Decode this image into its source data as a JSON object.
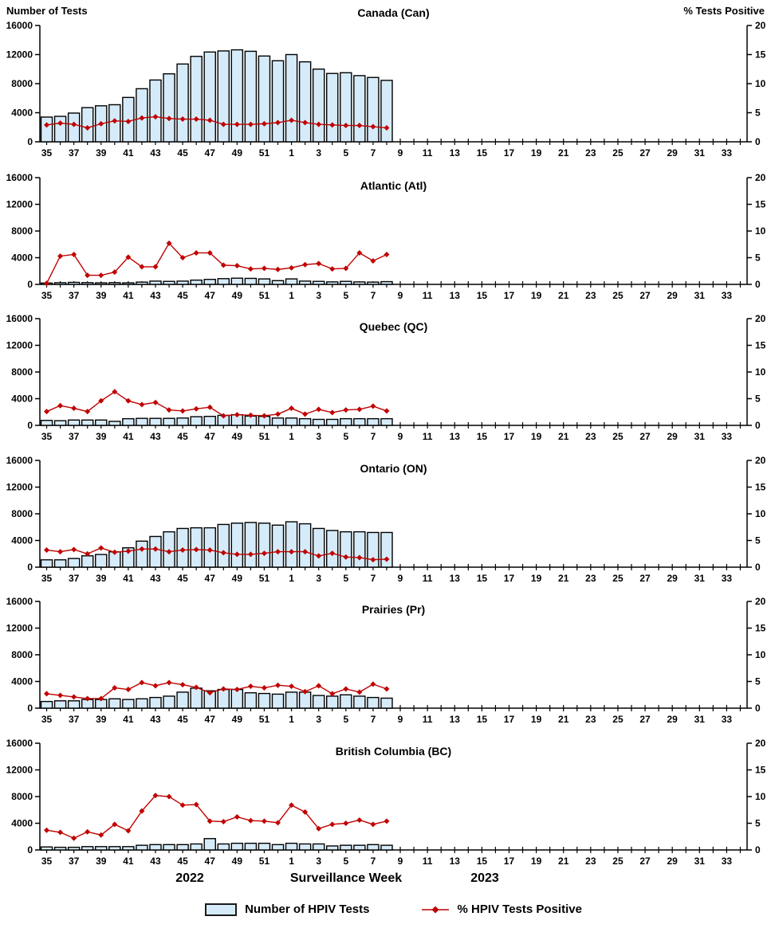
{
  "header": {
    "left_axis_title": "Number of Tests",
    "right_axis_title": "% Tests Positive"
  },
  "footer": {
    "year_left": "2022",
    "axis_title": "Surveillance Week",
    "year_right": "2023"
  },
  "legend": {
    "tests_label": "Number of HPIV Tests",
    "pct_label": "% HPIV Tests Positive"
  },
  "colors": {
    "bar_fill": "#D6EBFA",
    "bar_stroke": "#000000",
    "line": "#C00000",
    "axis": "#000000"
  },
  "chart_data": {
    "type": "bar",
    "subtype": "multi-panel bar + line (dual axis)",
    "x": {
      "axis_title": "Surveillance Week",
      "year_left": "2022",
      "year_right": "2023",
      "weeks_full": [
        35,
        36,
        37,
        38,
        39,
        40,
        41,
        42,
        43,
        44,
        45,
        46,
        47,
        48,
        49,
        50,
        51,
        52,
        1,
        2,
        3,
        4,
        5,
        6,
        7,
        8,
        9,
        10,
        11,
        12,
        13,
        14,
        15,
        16,
        17,
        18,
        19,
        20,
        21,
        22,
        23,
        24,
        25,
        26,
        27,
        28,
        29,
        30,
        31,
        32,
        33,
        34
      ],
      "data_weeks": [
        35,
        36,
        37,
        38,
        39,
        40,
        41,
        42,
        43,
        44,
        45,
        46,
        47,
        48,
        49,
        50,
        51,
        52,
        1,
        2,
        3,
        4,
        5,
        6,
        7,
        8
      ],
      "tick_labels_shown": [
        35,
        37,
        39,
        41,
        43,
        45,
        47,
        49,
        51,
        1,
        3,
        5,
        7,
        9,
        11,
        13,
        15,
        17,
        19,
        21,
        23,
        25,
        27,
        29,
        31,
        33
      ]
    },
    "left_axis": {
      "label": "Number of Tests",
      "range": [
        0,
        16000
      ],
      "ticks": [
        0,
        4000,
        8000,
        12000,
        16000
      ]
    },
    "right_axis": {
      "label": "% Tests Positive",
      "range": [
        0,
        20
      ],
      "ticks": [
        0,
        5,
        10,
        15,
        20
      ]
    },
    "grid": false,
    "legend_position": "bottom-center",
    "panels": [
      {
        "title": "Canada (Can)",
        "tests": [
          3400,
          3500,
          3950,
          4700,
          4950,
          5100,
          6100,
          7300,
          8500,
          9350,
          10700,
          11750,
          12350,
          12500,
          12650,
          12450,
          11800,
          11150,
          12000,
          11000,
          10000,
          9400,
          9500,
          9100,
          8850,
          8450
        ],
        "pct_positive": [
          2.9,
          3.2,
          3.0,
          2.4,
          3.1,
          3.6,
          3.5,
          4.1,
          4.3,
          4.0,
          3.9,
          3.9,
          3.7,
          3.0,
          3.0,
          3.0,
          3.1,
          3.3,
          3.7,
          3.3,
          3.0,
          2.9,
          2.8,
          2.8,
          2.6,
          2.4
        ]
      },
      {
        "title": "Atlantic (Atl)",
        "tests": [
          200,
          250,
          300,
          260,
          230,
          260,
          230,
          340,
          490,
          450,
          490,
          640,
          750,
          860,
          930,
          900,
          820,
          560,
          820,
          490,
          450,
          370,
          450,
          370,
          340,
          410
        ],
        "pct_positive": [
          0.2,
          5.3,
          5.6,
          1.7,
          1.7,
          2.3,
          5.1,
          3.3,
          3.3,
          7.7,
          5.0,
          5.9,
          5.9,
          3.6,
          3.5,
          2.9,
          3.0,
          2.8,
          3.1,
          3.7,
          3.9,
          2.9,
          3.0,
          5.9,
          4.4,
          5.6
        ]
      },
      {
        "title": "Quebec (QC)",
        "tests": [
          750,
          700,
          800,
          800,
          800,
          600,
          1000,
          1050,
          1050,
          1050,
          1100,
          1300,
          1350,
          1500,
          1600,
          1400,
          1350,
          1100,
          1100,
          1000,
          900,
          900,
          1000,
          1000,
          1000,
          1000
        ],
        "pct_positive": [
          2.6,
          3.7,
          3.2,
          2.6,
          4.6,
          6.3,
          4.6,
          3.9,
          4.3,
          2.9,
          2.7,
          3.1,
          3.4,
          1.8,
          2.0,
          1.9,
          1.8,
          2.1,
          3.2,
          2.1,
          3.0,
          2.4,
          2.9,
          3.0,
          3.6,
          2.7
        ]
      },
      {
        "title": "Ontario (ON)",
        "tests": [
          1100,
          1100,
          1300,
          1700,
          1900,
          2300,
          2900,
          3900,
          4600,
          5300,
          5800,
          5900,
          5900,
          6400,
          6600,
          6700,
          6600,
          6300,
          6800,
          6500,
          5800,
          5500,
          5300,
          5300,
          5200,
          5200
        ],
        "pct_positive": [
          3.2,
          2.9,
          3.3,
          2.5,
          3.6,
          2.8,
          3.0,
          3.4,
          3.4,
          2.9,
          3.2,
          3.3,
          3.2,
          2.7,
          2.4,
          2.4,
          2.6,
          2.9,
          2.9,
          2.9,
          2.1,
          2.6,
          1.9,
          1.8,
          1.4,
          1.5
        ]
      },
      {
        "title": "Prairies (Pr)",
        "tests": [
          1000,
          1100,
          1100,
          1300,
          1300,
          1400,
          1300,
          1400,
          1600,
          1800,
          2400,
          3000,
          2600,
          2800,
          2800,
          2300,
          2200,
          2100,
          2400,
          2400,
          1900,
          1800,
          2000,
          1800,
          1600,
          1500
        ],
        "pct_positive": [
          2.7,
          2.4,
          2.1,
          1.8,
          1.8,
          3.8,
          3.5,
          4.8,
          4.2,
          4.8,
          4.4,
          3.9,
          2.9,
          3.6,
          3.5,
          4.1,
          3.8,
          4.3,
          4.1,
          3.1,
          4.2,
          2.7,
          3.6,
          3.0,
          4.5,
          3.6
        ]
      },
      {
        "title": "British Columbia (BC)",
        "tests": [
          450,
          400,
          400,
          500,
          500,
          500,
          500,
          700,
          800,
          800,
          800,
          900,
          1700,
          900,
          1000,
          1000,
          1000,
          800,
          1000,
          900,
          900,
          600,
          700,
          700,
          800,
          700
        ],
        "pct_positive": [
          3.7,
          3.3,
          2.2,
          3.4,
          2.8,
          4.8,
          3.6,
          7.3,
          10.2,
          10.0,
          8.4,
          8.5,
          5.4,
          5.3,
          6.2,
          5.5,
          5.4,
          5.1,
          8.4,
          7.1,
          4.0,
          4.8,
          5.0,
          5.6,
          4.8,
          5.4
        ]
      }
    ]
  }
}
